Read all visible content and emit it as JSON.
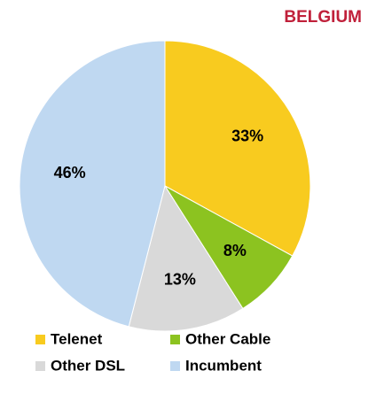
{
  "chart_data": {
    "type": "pie",
    "title": "BELGIUM",
    "categories": [
      "Telenet",
      "Other Cable",
      "Other DSL",
      "Incumbent"
    ],
    "values": [
      33,
      8,
      13,
      46
    ],
    "value_labels": [
      "33%",
      "8%",
      "13%",
      "46%"
    ],
    "colors": [
      "#f8cb1f",
      "#8cc320",
      "#d9d9d9",
      "#bfd8f1"
    ],
    "legend": "bottom"
  }
}
